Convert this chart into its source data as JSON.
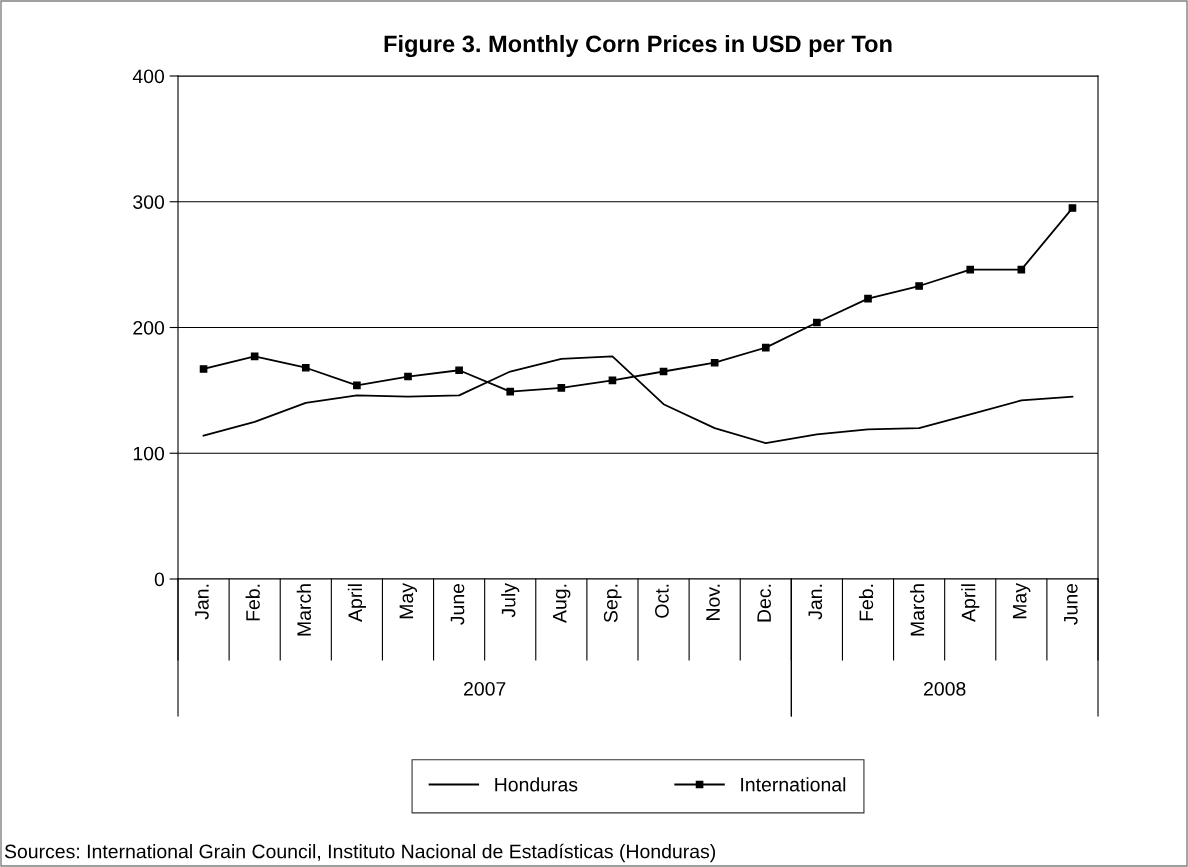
{
  "chart_data": {
    "type": "line",
    "title": "Figure 3. Monthly Corn Prices in USD per Ton",
    "categories": [
      "Jan.",
      "Feb.",
      "March",
      "April",
      "May",
      "June",
      "July",
      "Aug.",
      "Sep.",
      "Oct.",
      "Nov.",
      "Dec.",
      "Jan.",
      "Feb.",
      "March",
      "April",
      "May",
      "June"
    ],
    "series": [
      {
        "name": "Honduras",
        "color": "#000000",
        "marker": "none",
        "values": [
          114,
          125,
          140,
          146,
          145,
          146,
          165,
          175,
          177,
          139,
          120,
          108,
          115,
          119,
          120,
          131,
          142,
          145
        ]
      },
      {
        "name": "International",
        "color": "#000000",
        "marker": "square",
        "values": [
          167,
          177,
          168,
          154,
          161,
          166,
          149,
          152,
          158,
          165,
          172,
          184,
          204,
          223,
          233,
          246,
          246,
          295
        ]
      }
    ],
    "ylim": [
      0,
      400
    ],
    "yticks": [
      0,
      100,
      200,
      300,
      400
    ],
    "grid": "y",
    "legend": "bottom",
    "annotations": [
      "2007",
      "2008",
      "Sources: International Grain Council, Instituto Nacional de Estadísticas (Honduras)"
    ]
  }
}
